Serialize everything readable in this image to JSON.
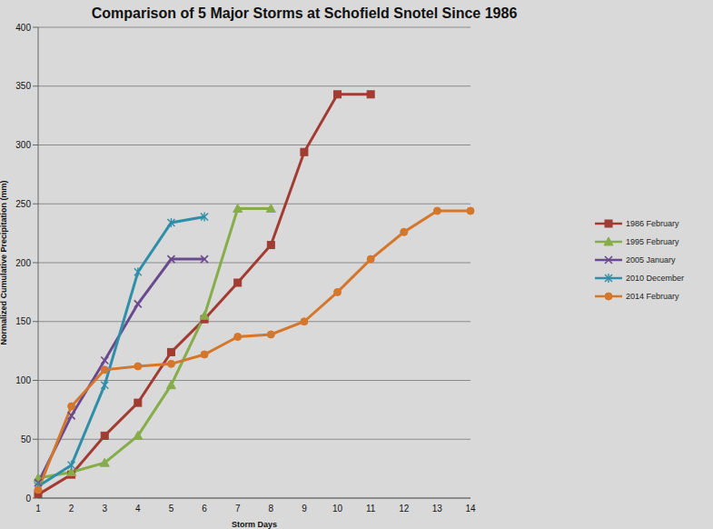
{
  "chart_data": {
    "type": "line",
    "title": "Comparison of 5 Major Storms at Schofield Snotel Since 1986",
    "x_label": "Storm Days",
    "y_label": "Normalized Cumulative Precipitation (mm)",
    "categories": [
      1,
      2,
      3,
      4,
      5,
      6,
      7,
      8,
      9,
      10,
      11,
      12,
      13,
      14
    ],
    "ylim": [
      0,
      400
    ],
    "yticks": [
      0,
      50,
      100,
      150,
      200,
      250,
      300,
      350,
      400
    ],
    "grid": true,
    "legend": "right",
    "series": [
      {
        "name": "1986 February",
        "color": "#a23b32",
        "marker": "square",
        "values": [
          3,
          20,
          53,
          81,
          124,
          152,
          183,
          215,
          294,
          343,
          343,
          null,
          null,
          null
        ]
      },
      {
        "name": "1995 February",
        "color": "#86ad4a",
        "marker": "triangle",
        "values": [
          17,
          22,
          30,
          53,
          96,
          155,
          246,
          246,
          null,
          null,
          null,
          null,
          null,
          null
        ]
      },
      {
        "name": "2005 January",
        "color": "#6a4a8e",
        "marker": "x",
        "values": [
          13,
          70,
          117,
          165,
          203,
          203,
          null,
          null,
          null,
          null,
          null,
          null,
          null,
          null
        ]
      },
      {
        "name": "2010 December",
        "color": "#2f8ea8",
        "marker": "asterisk",
        "values": [
          10,
          28,
          96,
          192,
          234,
          239,
          null,
          null,
          null,
          null,
          null,
          null,
          null,
          null
        ]
      },
      {
        "name": "2014 February",
        "color": "#d5772b",
        "marker": "circle",
        "values": [
          7,
          78,
          109,
          112,
          114,
          122,
          137,
          139,
          150,
          175,
          203,
          226,
          244,
          244
        ]
      }
    ]
  }
}
